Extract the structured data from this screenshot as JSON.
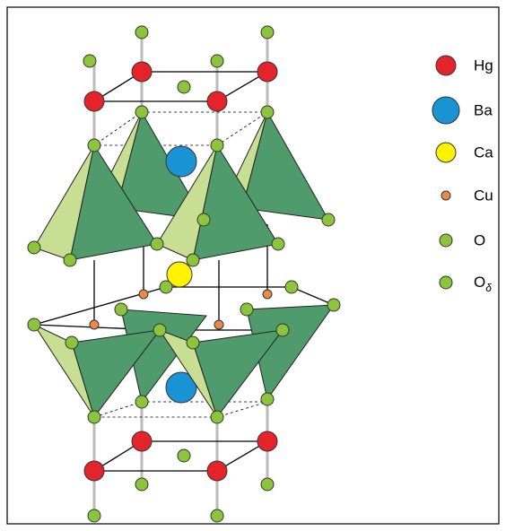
{
  "legend": {
    "items": [
      {
        "label": "Hg"
      },
      {
        "label": "Ba"
      },
      {
        "label": "Ca"
      },
      {
        "label": "Cu"
      },
      {
        "label": "O"
      },
      {
        "label": "O",
        "subscript": "δ"
      }
    ]
  }
}
